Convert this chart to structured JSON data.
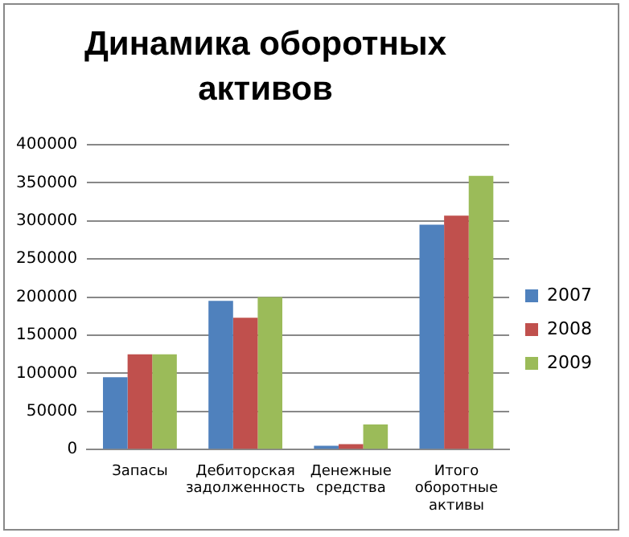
{
  "chart_data": {
    "type": "bar",
    "title": "Динамика оборотных активов",
    "categories": [
      "Запасы",
      "Дебиторская задолженность",
      "Денежные средства",
      "Итого оборотные активы"
    ],
    "series": [
      {
        "name": "2007",
        "color": "#4f81bd",
        "values": [
          95000,
          195000,
          5000,
          295000
        ]
      },
      {
        "name": "2008",
        "color": "#c0504d",
        "values": [
          125000,
          173000,
          7000,
          307000
        ]
      },
      {
        "name": "2009",
        "color": "#9bbb59",
        "values": [
          125000,
          200000,
          33000,
          359000
        ]
      }
    ],
    "ylim": [
      0,
      400000
    ],
    "yticks": [
      0,
      50000,
      100000,
      150000,
      200000,
      250000,
      300000,
      350000,
      400000
    ],
    "grid": "y",
    "legend": "right"
  }
}
